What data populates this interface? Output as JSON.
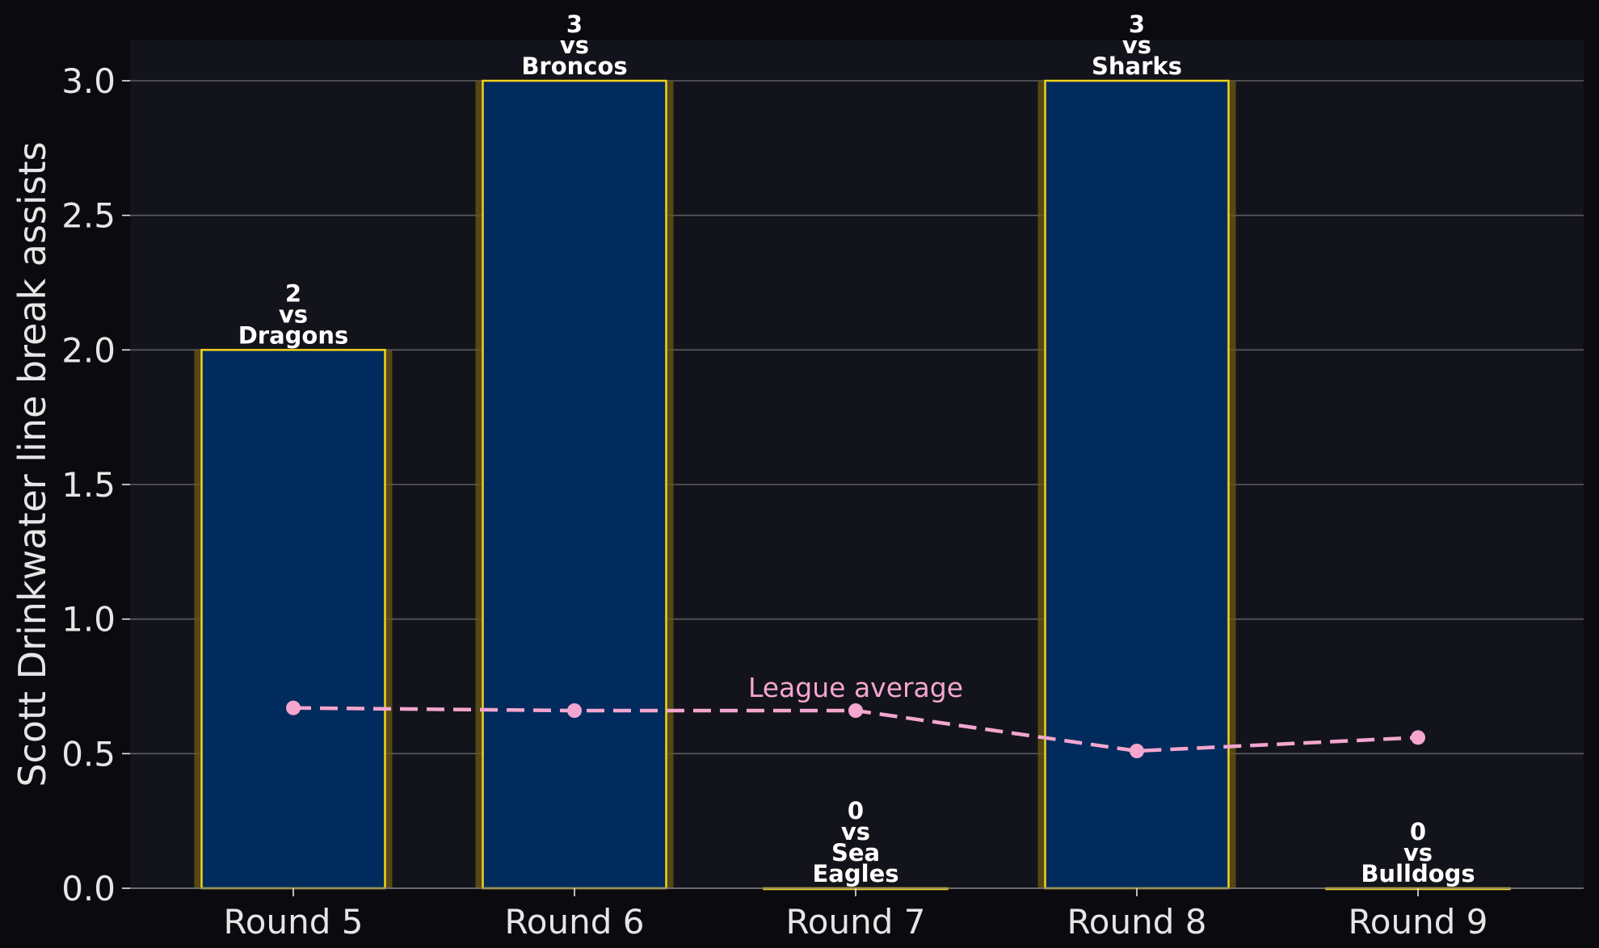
{
  "chart_data": {
    "type": "bar",
    "categories": [
      "Round 5",
      "Round 6",
      "Round 7",
      "Round 8",
      "Round 9"
    ],
    "values": [
      2,
      3,
      0,
      3,
      0
    ],
    "opponents": [
      [
        "Dragons"
      ],
      [
        "Broncos"
      ],
      [
        "Sea",
        "Eagles"
      ],
      [
        "Sharks"
      ],
      [
        "Bulldogs"
      ]
    ],
    "vs_word": "vs",
    "ylabel": "Scott Drinkwater line break assists",
    "xlabel": "",
    "ylim": [
      0,
      3.15
    ],
    "yticks": [
      "0.0",
      "0.5",
      "1.0",
      "1.5",
      "2.0",
      "2.5",
      "3.0"
    ],
    "ytick_values": [
      0,
      0.5,
      1.0,
      1.5,
      2.0,
      2.5,
      3.0
    ],
    "grid": "horizontal",
    "series": [
      {
        "name": "League average",
        "type": "line",
        "values": [
          0.67,
          0.66,
          0.66,
          0.51,
          0.56
        ]
      }
    ],
    "colors": {
      "figure_bg": "#0b0b0f",
      "plot_bg": "#13141b",
      "bar_fill": "#002b5c",
      "bar_edge": "#f2d21b",
      "bar_glow": "#6b5a14",
      "average_line": "#f4a6cf",
      "grid": "#5c5c63",
      "text": "#e6e6e6"
    }
  }
}
